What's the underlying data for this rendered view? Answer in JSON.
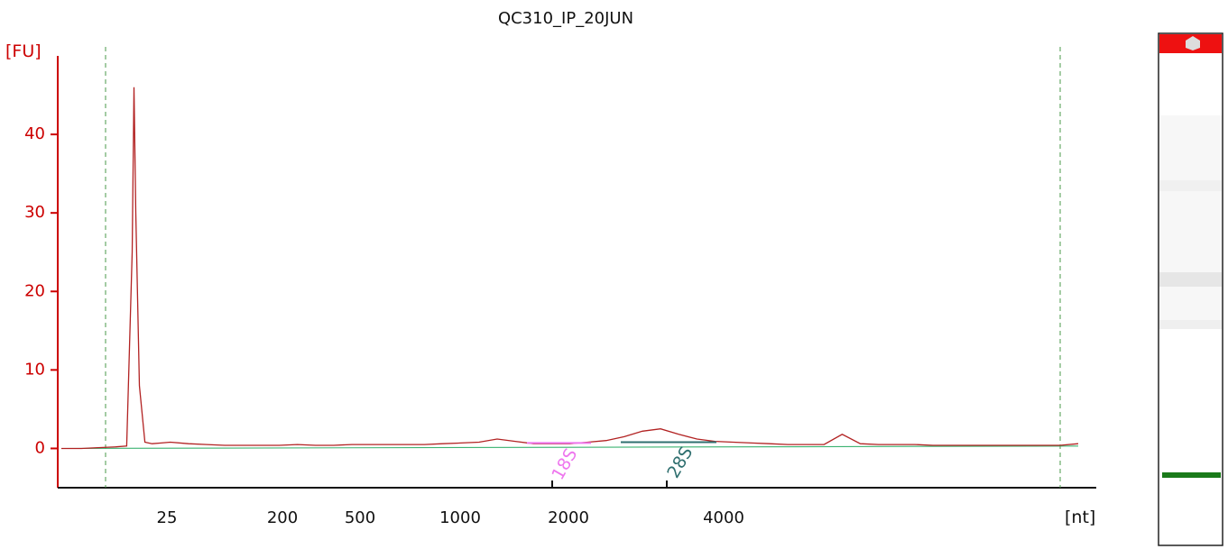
{
  "chart_data": {
    "type": "line",
    "title": "QC310_IP_20JUN",
    "ylabel": "[FU]",
    "xlabel": "[nt]",
    "ylim": [
      -5,
      50
    ],
    "y_ticks": [
      0,
      10,
      20,
      30,
      40
    ],
    "x_ticks": [
      "25",
      "200",
      "500",
      "1000",
      "2000",
      "4000"
    ],
    "grid": false,
    "legend": "none",
    "series": [
      {
        "color": "#b22222",
        "x": [
          0,
          1.1,
          2,
          3,
          3.6,
          3.9,
          4.0,
          4.1,
          4.3,
          4.6,
          5.0,
          5.5,
          6,
          7,
          8,
          9,
          10,
          11,
          12,
          13,
          14,
          15,
          16,
          17,
          18,
          19,
          20,
          21,
          22,
          23,
          24,
          25,
          26,
          27,
          28,
          29,
          30,
          31,
          32,
          33,
          34,
          35,
          36,
          37,
          38,
          39,
          40,
          41,
          42,
          43,
          44,
          45,
          46,
          47,
          48,
          49,
          50,
          51,
          52,
          53,
          54,
          55,
          56
        ],
        "y": [
          0,
          0,
          0.1,
          0.2,
          0.3,
          25,
          46,
          30,
          8,
          0.8,
          0.6,
          0.7,
          0.8,
          0.6,
          0.5,
          0.4,
          0.4,
          0.4,
          0.4,
          0.5,
          0.4,
          0.4,
          0.5,
          0.5,
          0.5,
          0.5,
          0.5,
          0.6,
          0.7,
          0.8,
          1.2,
          0.9,
          0.6,
          0.6,
          0.6,
          0.8,
          1.0,
          1.5,
          2.2,
          2.5,
          1.8,
          1.2,
          0.9,
          0.8,
          0.7,
          0.6,
          0.5,
          0.5,
          0.5,
          1.8,
          0.6,
          0.5,
          0.5,
          0.5,
          0.4,
          0.4,
          0.4,
          0.4,
          0.4,
          0.4,
          0.4,
          0.4,
          0.6
        ]
      },
      {
        "color": "#3cb371",
        "x": [
          0,
          56
        ],
        "y": [
          0,
          0.3
        ]
      }
    ],
    "peaks": [
      {
        "label": "18S",
        "color": "#ee77ee"
      },
      {
        "label": "28S",
        "color": "#2f6f6f"
      }
    ]
  }
}
